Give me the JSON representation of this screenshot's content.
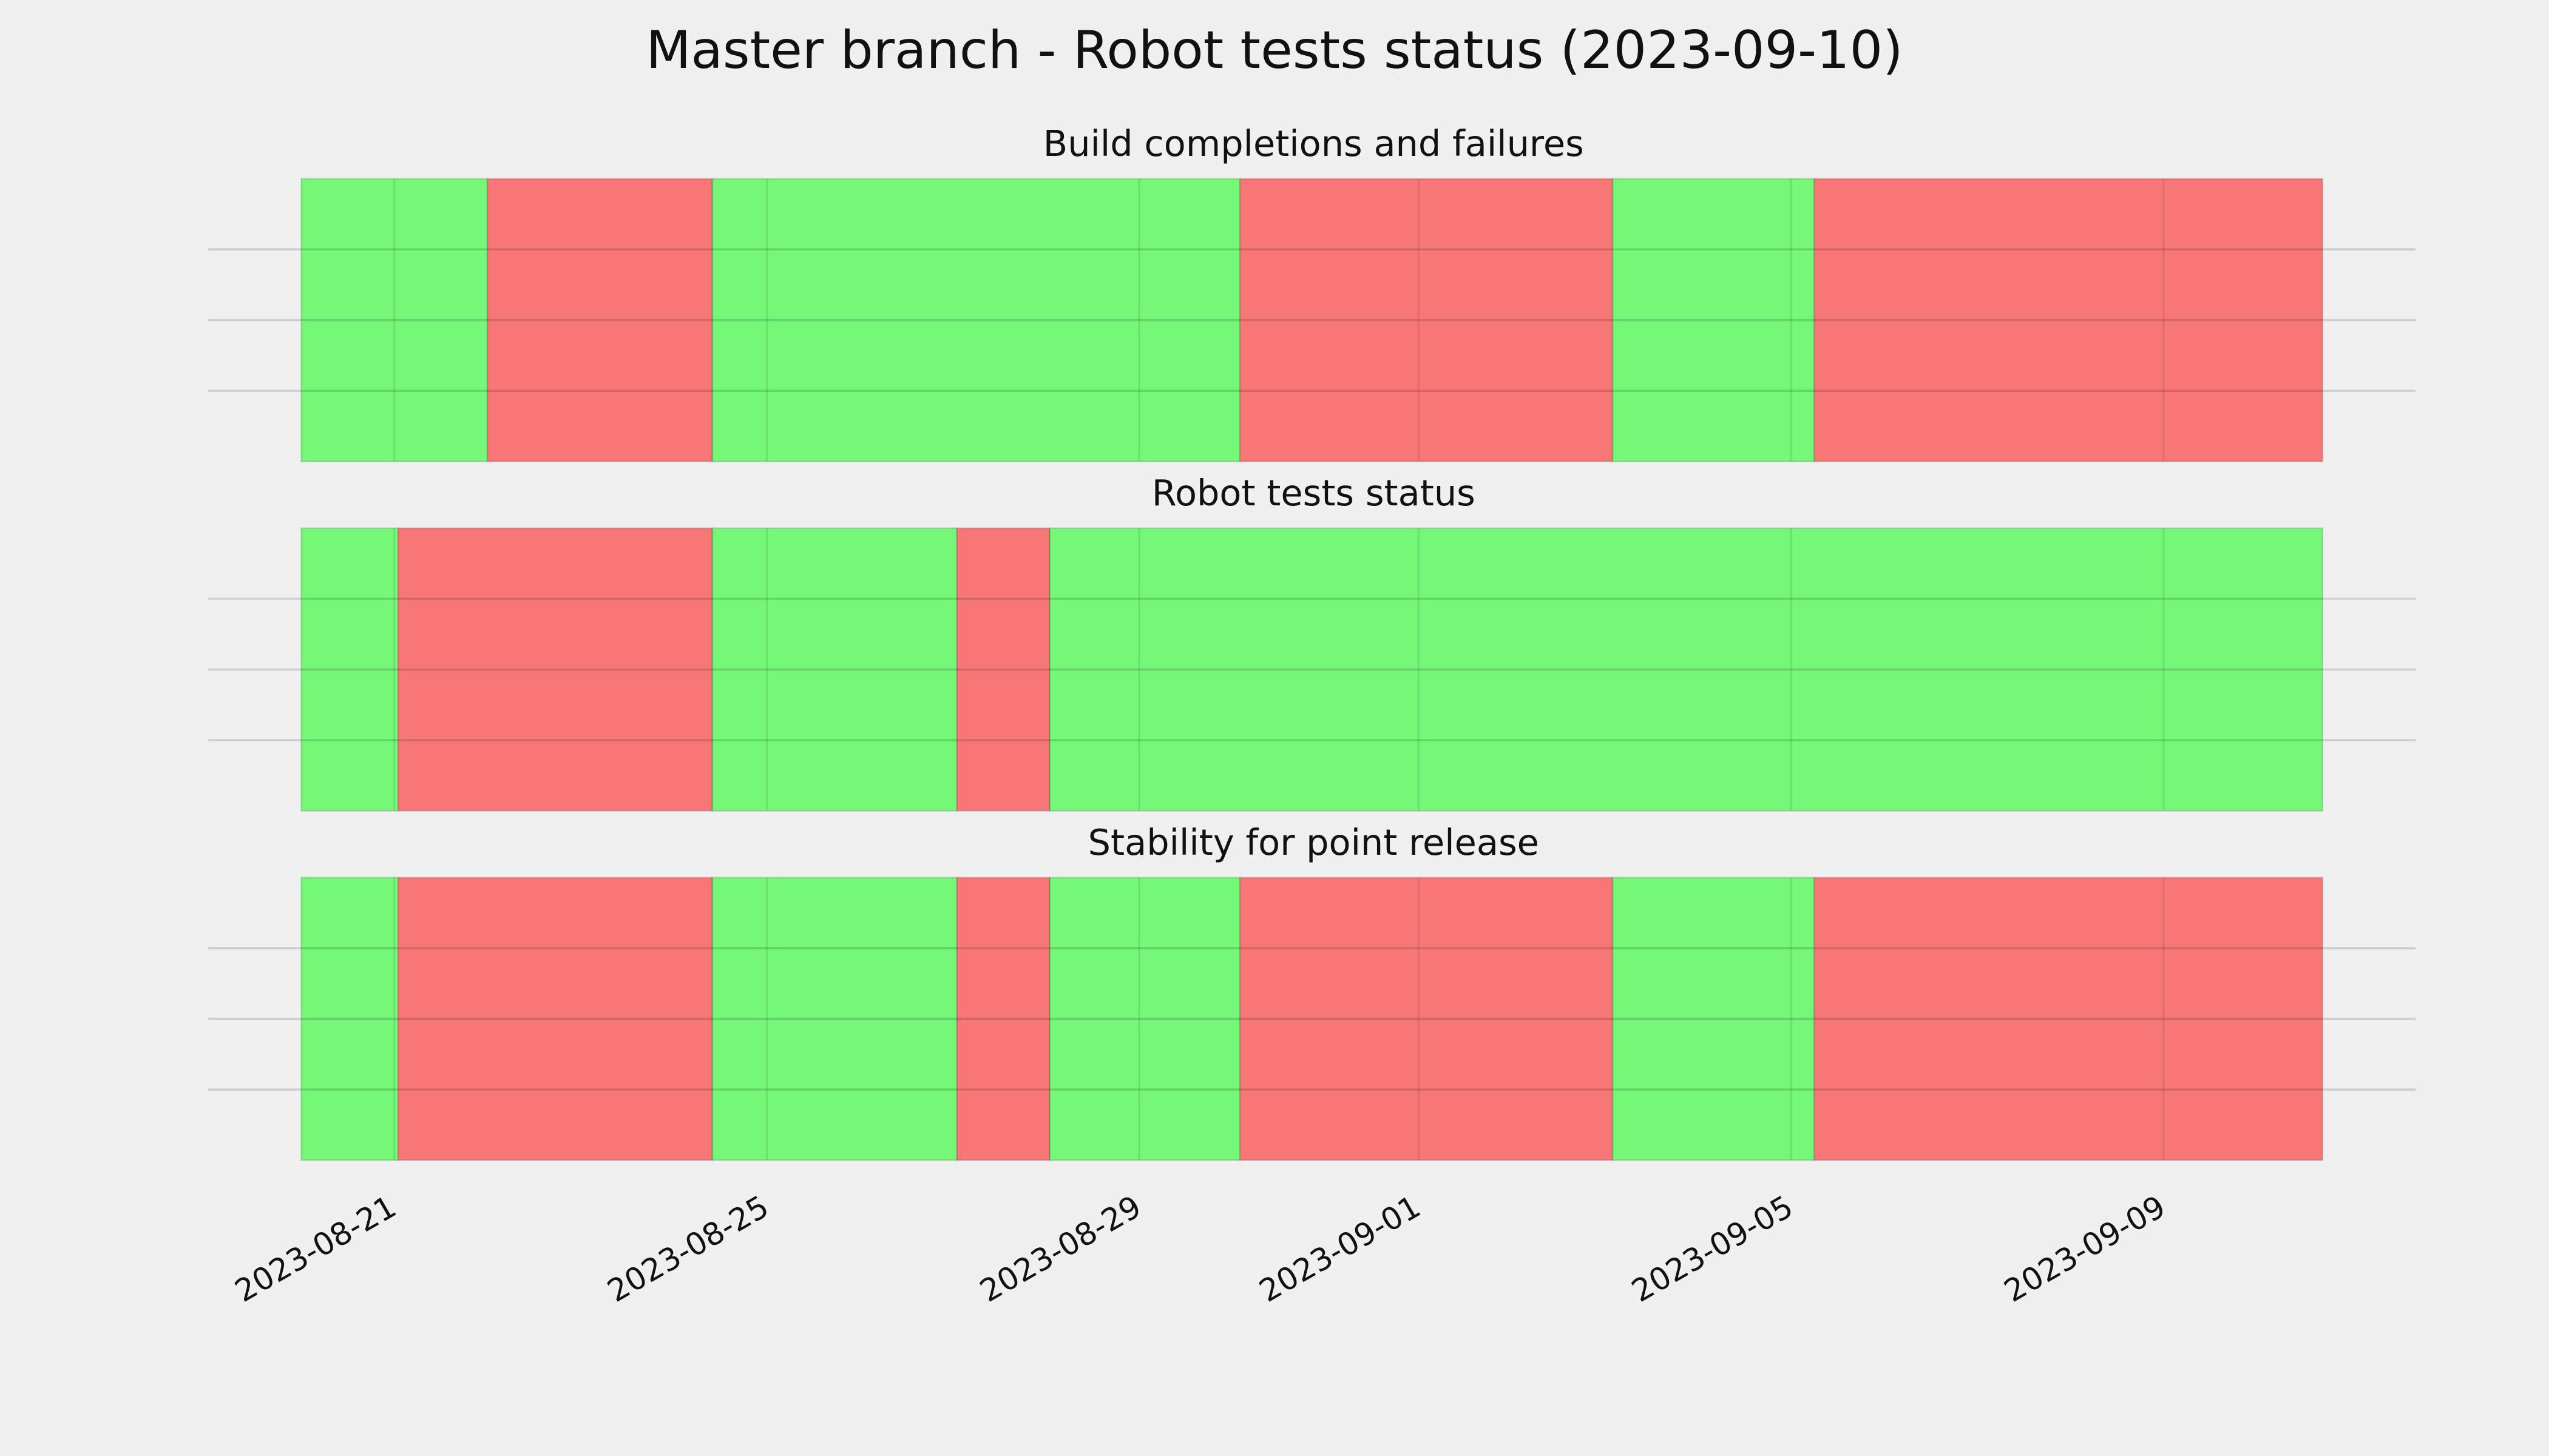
{
  "chart_data": {
    "type": "timeline",
    "title": "Master branch - Robot tests status (2023-09-10)",
    "xlim": [
      "2023-08-19",
      "2023-09-11T17:00"
    ],
    "xticks": [
      "2023-08-21",
      "2023-08-25",
      "2023-08-29",
      "2023-09-01",
      "2023-09-05",
      "2023-09-09"
    ],
    "ylim": [
      0,
      1
    ],
    "yticks": [
      0.25,
      0.5,
      0.75
    ],
    "grid": true,
    "panels": [
      {
        "title": "Build completions and failures",
        "segments": [
          {
            "start": "2023-08-20",
            "end": "2023-08-22",
            "color": "#75f777"
          },
          {
            "start": "2023-08-22",
            "end": "2023-08-24T10:00",
            "color": "#f77777"
          },
          {
            "start": "2023-08-24T10:00",
            "end": "2023-08-30T02:00",
            "color": "#75f777"
          },
          {
            "start": "2023-08-30T02:00",
            "end": "2023-09-03T02:00",
            "color": "#f77777"
          },
          {
            "start": "2023-09-03T02:00",
            "end": "2023-09-05T06:00",
            "color": "#75f777"
          },
          {
            "start": "2023-09-05T06:00",
            "end": "2023-09-10T17:00",
            "color": "#f77777"
          }
        ]
      },
      {
        "title": "Robot tests status",
        "segments": [
          {
            "start": "2023-08-20",
            "end": "2023-08-21T01:00",
            "color": "#75f777"
          },
          {
            "start": "2023-08-21T01:00",
            "end": "2023-08-24T10:00",
            "color": "#f77777"
          },
          {
            "start": "2023-08-24T10:00",
            "end": "2023-08-27T01:00",
            "color": "#75f777"
          },
          {
            "start": "2023-08-27T01:00",
            "end": "2023-08-28T01:00",
            "color": "#f77777"
          },
          {
            "start": "2023-08-28T01:00",
            "end": "2023-09-10T17:00",
            "color": "#75f777"
          }
        ]
      },
      {
        "title": "Stability for point release",
        "segments": [
          {
            "start": "2023-08-20",
            "end": "2023-08-21T01:00",
            "color": "#75f777"
          },
          {
            "start": "2023-08-21T01:00",
            "end": "2023-08-24T10:00",
            "color": "#f77777"
          },
          {
            "start": "2023-08-24T10:00",
            "end": "2023-08-27T01:00",
            "color": "#75f777"
          },
          {
            "start": "2023-08-27T01:00",
            "end": "2023-08-28T01:00",
            "color": "#f77777"
          },
          {
            "start": "2023-08-28T01:00",
            "end": "2023-08-30T02:00",
            "color": "#75f777"
          },
          {
            "start": "2023-08-30T02:00",
            "end": "2023-09-03T02:00",
            "color": "#f77777"
          },
          {
            "start": "2023-09-03T02:00",
            "end": "2023-09-05T06:00",
            "color": "#75f777"
          },
          {
            "start": "2023-09-05T06:00",
            "end": "2023-09-10T17:00",
            "color": "#f77777"
          }
        ]
      }
    ]
  }
}
